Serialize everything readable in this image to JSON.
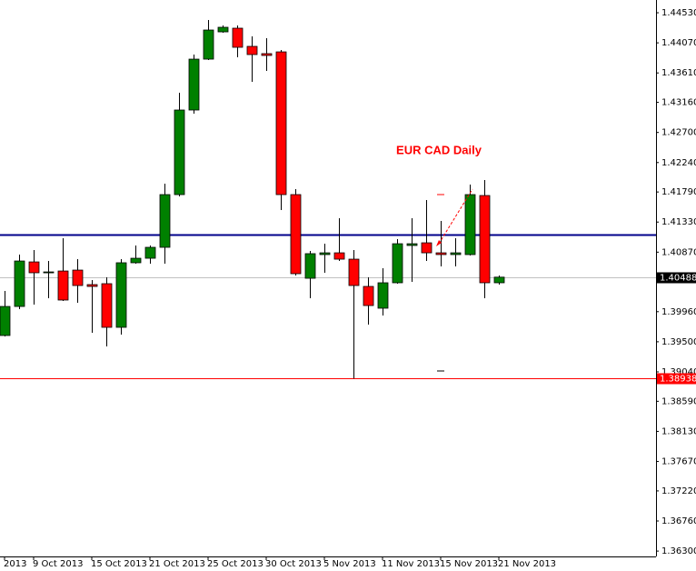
{
  "chart_data": {
    "type": "candlestick",
    "title": "EUR CAD Daily",
    "categories": [
      "2013",
      null,
      "9 Oct 2013",
      null,
      null,
      null,
      "15 Oct 2013",
      null,
      null,
      null,
      "21 Oct 2013",
      null,
      null,
      null,
      "25 Oct 2013",
      null,
      null,
      null,
      "30 Oct 2013",
      null,
      null,
      null,
      "5 Nov 2013",
      null,
      null,
      null,
      "11 Nov 2013",
      null,
      null,
      null,
      "15 Nov 2013",
      null,
      null,
      null,
      "21 Nov 2013"
    ],
    "open": [
      1.39596,
      1.4004,
      1.40721,
      1.40555,
      1.40582,
      1.40596,
      1.40374,
      1.40388,
      1.39721,
      1.40708,
      1.40777,
      1.40944,
      1.4175,
      1.43043,
      1.43821,
      1.44238,
      1.44294,
      1.44016,
      1.43905,
      1.43932,
      1.4175,
      1.40471,
      1.40833,
      1.4086,
      1.40763,
      1.40346,
      1.40013,
      1.40402,
      1.40972,
      1.41013,
      1.4086,
      1.40833,
      1.40833,
      1.41736,
      1.40402
    ],
    "high": [
      1.40277,
      1.40833,
      1.40902,
      1.40735,
      1.41083,
      1.40763,
      1.40443,
      1.40485,
      1.40763,
      1.40972,
      1.40972,
      1.41917,
      1.43307,
      1.43891,
      1.44419,
      1.44335,
      1.44335,
      1.44169,
      1.44141,
      1.4396,
      1.41833,
      1.40888,
      1.40999,
      1.41389,
      1.40902,
      1.40485,
      1.40624,
      1.41069,
      1.41389,
      1.41667,
      1.41347,
      1.41083,
      1.41903,
      1.41972,
      1.40513
    ],
    "low": [
      1.39582,
      1.39999,
      1.40068,
      1.40165,
      1.40124,
      1.40096,
      1.39637,
      1.39429,
      1.39609,
      1.40694,
      1.40694,
      1.40694,
      1.41722,
      1.42987,
      1.43807,
      1.44224,
      1.43849,
      1.43474,
      1.4364,
      1.41514,
      1.40513,
      1.40165,
      1.40555,
      1.40735,
      1.38938,
      1.39762,
      1.39901,
      1.40388,
      1.40416,
      1.40735,
      1.40652,
      1.40652,
      1.40819,
      1.40165,
      1.40374
    ],
    "close": [
      1.4004,
      1.40735,
      1.40555,
      1.40568,
      1.40138,
      1.4036,
      1.40346,
      1.39721,
      1.40708,
      1.40777,
      1.40944,
      1.4175,
      1.43043,
      1.43821,
      1.44266,
      1.44308,
      1.44002,
      1.43891,
      1.43877,
      1.4175,
      1.40541,
      1.40847,
      1.4086,
      1.40763,
      1.4036,
      1.40054,
      1.40402,
      1.40999,
      1.40999,
      1.4086,
      1.40833,
      1.4086,
      1.4175,
      1.40402,
      1.40488
    ],
    "up_color": "#008000",
    "down_color": "#ff0000",
    "ylim": [
      1.36218,
      1.44725
    ],
    "yticks": [
      {
        "value": 1.4453,
        "label": "1.44530"
      },
      {
        "value": 1.4407,
        "label": "1.44070"
      },
      {
        "value": 1.4361,
        "label": "1.43610"
      },
      {
        "value": 1.4316,
        "label": "1.43160"
      },
      {
        "value": 1.427,
        "label": "1.42700"
      },
      {
        "value": 1.4224,
        "label": "1.42240"
      },
      {
        "value": 1.4179,
        "label": "1.41790"
      },
      {
        "value": 1.4133,
        "label": "1.41330"
      },
      {
        "value": 1.4087,
        "label": "1.40870"
      },
      {
        "value": 1.3996,
        "label": "1.39960"
      },
      {
        "value": 1.395,
        "label": "1.39500"
      },
      {
        "value": 1.3904,
        "label": "1.39040"
      },
      {
        "value": 1.3859,
        "label": "1.38590"
      },
      {
        "value": 1.3813,
        "label": "1.38130"
      },
      {
        "value": 1.3767,
        "label": "1.37670"
      },
      {
        "value": 1.3722,
        "label": "1.37220"
      },
      {
        "value": 1.3676,
        "label": "1.36760"
      },
      {
        "value": 1.363,
        "label": "1.36300"
      }
    ],
    "hlines": [
      {
        "value": 1.41138,
        "color": "#00008b"
      },
      {
        "value": 1.40488,
        "color": "#c0c0c0",
        "box_color": "#000000"
      },
      {
        "value": 1.38938,
        "color": "#ff0000",
        "box_color": "#ff0000"
      }
    ]
  }
}
